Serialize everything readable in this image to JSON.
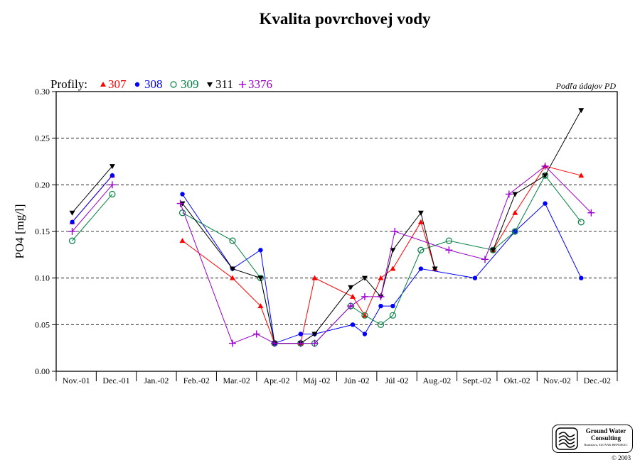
{
  "chart_data": {
    "type": "line",
    "title": "Kvalita povrchovej vody",
    "source_note": "Podľa údajov PD",
    "legend_prefix": "Profily:",
    "legend_placement": "top-left",
    "xlabel": "",
    "ylabel": "PO4 [mg/l]",
    "ylim": [
      0.0,
      0.3
    ],
    "yticks": [
      "0.00",
      "0.05",
      "0.10",
      "0.15",
      "0.20",
      "0.25",
      "0.30"
    ],
    "grid": "horizontal dashed",
    "categories": [
      "Nov.-01",
      "Dec.-01",
      "Jan.-02",
      "Feb.-02",
      "Mar.-02",
      "Apr.-02",
      "Máj -02",
      "Jún -02",
      "Júl -02",
      "Aug.-02",
      "Sept.-02",
      "Okt.-02",
      "Nov.-02",
      "Dec.-02"
    ],
    "series": [
      {
        "name": "307",
        "color": "#ff0000",
        "marker": "triangle-up",
        "points": [
          [
            0.4,
            0.16
          ],
          [
            1.4,
            0.21
          ],
          [
            3.15,
            0.14
          ],
          [
            4.4,
            0.1
          ],
          [
            5.1,
            0.07
          ],
          [
            5.45,
            0.03
          ],
          [
            6.1,
            0.03
          ],
          [
            6.45,
            0.1
          ],
          [
            7.4,
            0.08
          ],
          [
            7.7,
            0.06
          ],
          [
            8.1,
            0.1
          ],
          [
            8.4,
            0.11
          ],
          [
            9.1,
            0.16
          ],
          [
            9.45,
            0.11
          ],
          [
            10.9,
            0.13
          ],
          [
            11.45,
            0.17
          ],
          [
            12.2,
            0.22
          ],
          [
            13.1,
            0.21
          ]
        ]
      },
      {
        "name": "308",
        "color": "#0000ff",
        "marker": "circle-filled",
        "points": [
          [
            0.4,
            0.16
          ],
          [
            1.4,
            0.21
          ],
          [
            3.15,
            0.19
          ],
          [
            4.4,
            0.11
          ],
          [
            5.1,
            0.13
          ],
          [
            5.45,
            0.03
          ],
          [
            6.1,
            0.04
          ],
          [
            6.45,
            0.04
          ],
          [
            7.4,
            0.05
          ],
          [
            7.7,
            0.04
          ],
          [
            8.1,
            0.07
          ],
          [
            8.4,
            0.07
          ],
          [
            9.1,
            0.11
          ],
          [
            10.45,
            0.1
          ],
          [
            11.45,
            0.15
          ],
          [
            12.2,
            0.18
          ],
          [
            13.1,
            0.1
          ]
        ]
      },
      {
        "name": "309",
        "color": "#008040",
        "marker": "circle-open",
        "points": [
          [
            0.4,
            0.14
          ],
          [
            1.4,
            0.19
          ],
          [
            3.15,
            0.17
          ],
          [
            4.4,
            0.14
          ],
          [
            5.1,
            0.1
          ],
          [
            5.45,
            0.03
          ],
          [
            6.1,
            0.03
          ],
          [
            6.45,
            0.03
          ],
          [
            7.35,
            0.07
          ],
          [
            7.7,
            0.06
          ],
          [
            8.1,
            0.05
          ],
          [
            8.4,
            0.06
          ],
          [
            9.1,
            0.13
          ],
          [
            9.8,
            0.14
          ],
          [
            10.9,
            0.13
          ],
          [
            11.45,
            0.15
          ],
          [
            12.2,
            0.21
          ],
          [
            13.1,
            0.16
          ]
        ]
      },
      {
        "name": "311",
        "color": "#000000",
        "marker": "triangle-down",
        "points": [
          [
            0.4,
            0.17
          ],
          [
            1.4,
            0.22
          ],
          [
            3.15,
            0.18
          ],
          [
            4.4,
            0.11
          ],
          [
            5.1,
            0.1
          ],
          [
            5.45,
            0.03
          ],
          [
            6.1,
            0.03
          ],
          [
            6.45,
            0.04
          ],
          [
            7.35,
            0.09
          ],
          [
            7.7,
            0.1
          ],
          [
            8.1,
            0.08
          ],
          [
            8.4,
            0.13
          ],
          [
            9.1,
            0.17
          ],
          [
            9.45,
            0.11
          ],
          [
            10.9,
            0.13
          ],
          [
            11.45,
            0.19
          ],
          [
            12.2,
            0.21
          ],
          [
            13.1,
            0.28
          ]
        ]
      },
      {
        "name": "3376",
        "color": "#9900cc",
        "marker": "plus",
        "points": [
          [
            0.4,
            0.15
          ],
          [
            1.4,
            0.2
          ],
          [
            3.1,
            0.18
          ],
          [
            4.4,
            0.03
          ],
          [
            5.0,
            0.04
          ],
          [
            5.45,
            0.03
          ],
          [
            6.1,
            0.03
          ],
          [
            6.45,
            0.03
          ],
          [
            7.35,
            0.07
          ],
          [
            7.7,
            0.08
          ],
          [
            8.1,
            0.08
          ],
          [
            8.45,
            0.15
          ],
          [
            9.8,
            0.13
          ],
          [
            10.7,
            0.12
          ],
          [
            11.3,
            0.19
          ],
          [
            12.2,
            0.22
          ],
          [
            13.35,
            0.17
          ]
        ]
      }
    ]
  },
  "logo": {
    "line1": "Ground Water",
    "line2": "Consulting",
    "subline": "Bratislava, SLOVAK REPUBLIC"
  },
  "copyright": "© 2003"
}
